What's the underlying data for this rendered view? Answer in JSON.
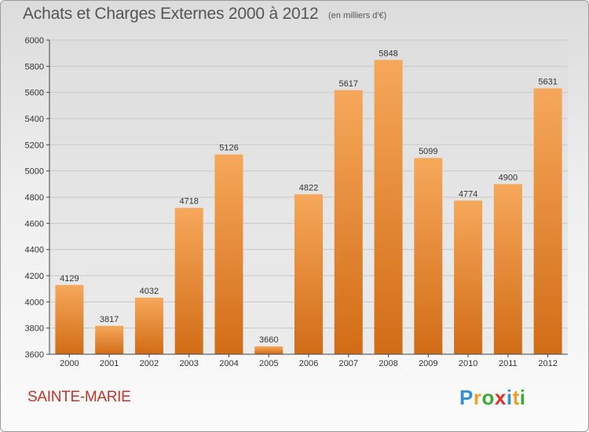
{
  "header": {
    "title": "Achats et Charges Externes 2000 à 2012",
    "subtitle": "(en milliers d'€)"
  },
  "footer": {
    "city": "SAINTE-MARIE",
    "logo": {
      "letters": [
        "P",
        "r",
        "o",
        "x",
        "i",
        "t",
        "i"
      ],
      "colors": [
        "#2f8fd8",
        "#f0a020",
        "#3aaa35",
        "#e0302a",
        "#2f8fd8",
        "#f0a020",
        "#3aaa35"
      ]
    }
  },
  "chart_data": {
    "type": "bar",
    "title": "Achats et Charges Externes 2000 à 2012",
    "subtitle": "(en milliers d'€)",
    "categories": [
      "2000",
      "2001",
      "2002",
      "2003",
      "2004",
      "2005",
      "2006",
      "2007",
      "2008",
      "2009",
      "2010",
      "2011",
      "2012"
    ],
    "values": [
      4129,
      3817,
      4032,
      4718,
      5126,
      3660,
      4822,
      5617,
      5848,
      5099,
      4774,
      4900,
      5631
    ],
    "ylim": [
      3600,
      6000
    ],
    "yticks": [
      3600,
      3800,
      4000,
      4200,
      4400,
      4600,
      4800,
      5000,
      5200,
      5400,
      5600,
      5800,
      6000
    ],
    "xlabel": "",
    "ylabel": "",
    "grid": true,
    "colors": {
      "bar_top": "#f6a85a",
      "bar_bottom": "#d26c16",
      "grid": "#c8c8c8",
      "plot_bg": "#e6e6e6"
    }
  }
}
